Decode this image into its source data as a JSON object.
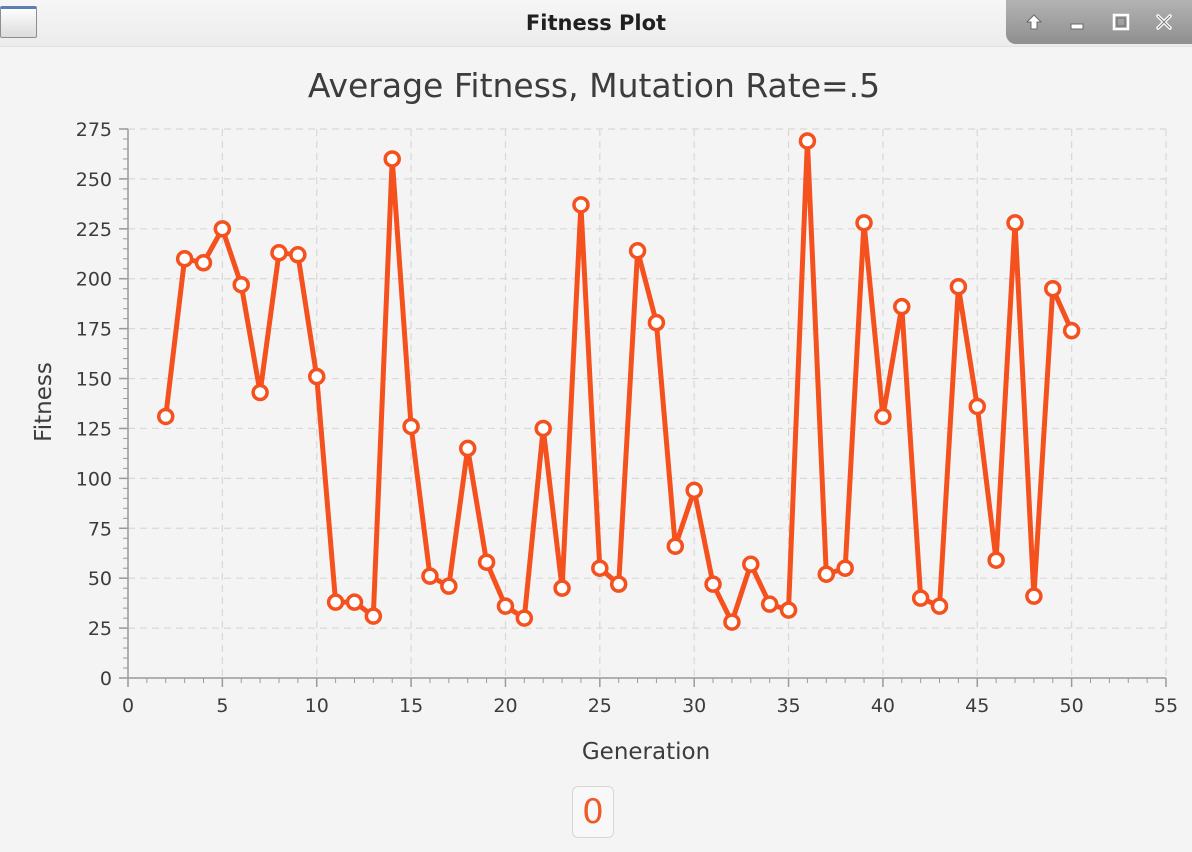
{
  "window": {
    "title": "Fitness Plot"
  },
  "footer": {
    "value": "0"
  },
  "colors": {
    "series": "#f4511e",
    "grid": "#d8d8d8",
    "axis": "#9a9a9a",
    "text": "#3c3c3c"
  },
  "icons": [
    "restore-up-icon",
    "minimize-icon",
    "maximize-icon",
    "close-icon"
  ],
  "chart_data": {
    "type": "line",
    "title": "Average Fitness, Mutation Rate=.5",
    "xlabel": "Generation",
    "ylabel": "Fitness",
    "xlim": [
      0,
      55
    ],
    "ylim": [
      0,
      275
    ],
    "xticks": [
      "0",
      "5",
      "10",
      "15",
      "20",
      "25",
      "30",
      "35",
      "40",
      "45",
      "50",
      "55"
    ],
    "yticks": [
      "0",
      "25",
      "50",
      "75",
      "100",
      "125",
      "150",
      "175",
      "200",
      "225",
      "250",
      "275"
    ],
    "grid": true,
    "series": [
      {
        "x": [
          2,
          3,
          4,
          5,
          6,
          7,
          8,
          9,
          10,
          11,
          12,
          13,
          14,
          15,
          16,
          17,
          18,
          19,
          20,
          21,
          22,
          23,
          24,
          25,
          26,
          27,
          28,
          29,
          30,
          31,
          32,
          33,
          34,
          35,
          36,
          37,
          38,
          39,
          40,
          41,
          42,
          43,
          44,
          45,
          46,
          47,
          48,
          49,
          50
        ],
        "y": [
          131,
          210,
          208,
          225,
          197,
          143,
          213,
          212,
          151,
          38,
          38,
          31,
          260,
          126,
          51,
          46,
          115,
          58,
          36,
          30,
          125,
          45,
          237,
          55,
          47,
          214,
          178,
          66,
          94,
          47,
          28,
          57,
          37,
          34,
          269,
          52,
          55,
          228,
          131,
          186,
          40,
          36,
          196,
          136,
          59,
          228,
          41,
          195,
          174
        ]
      }
    ]
  }
}
